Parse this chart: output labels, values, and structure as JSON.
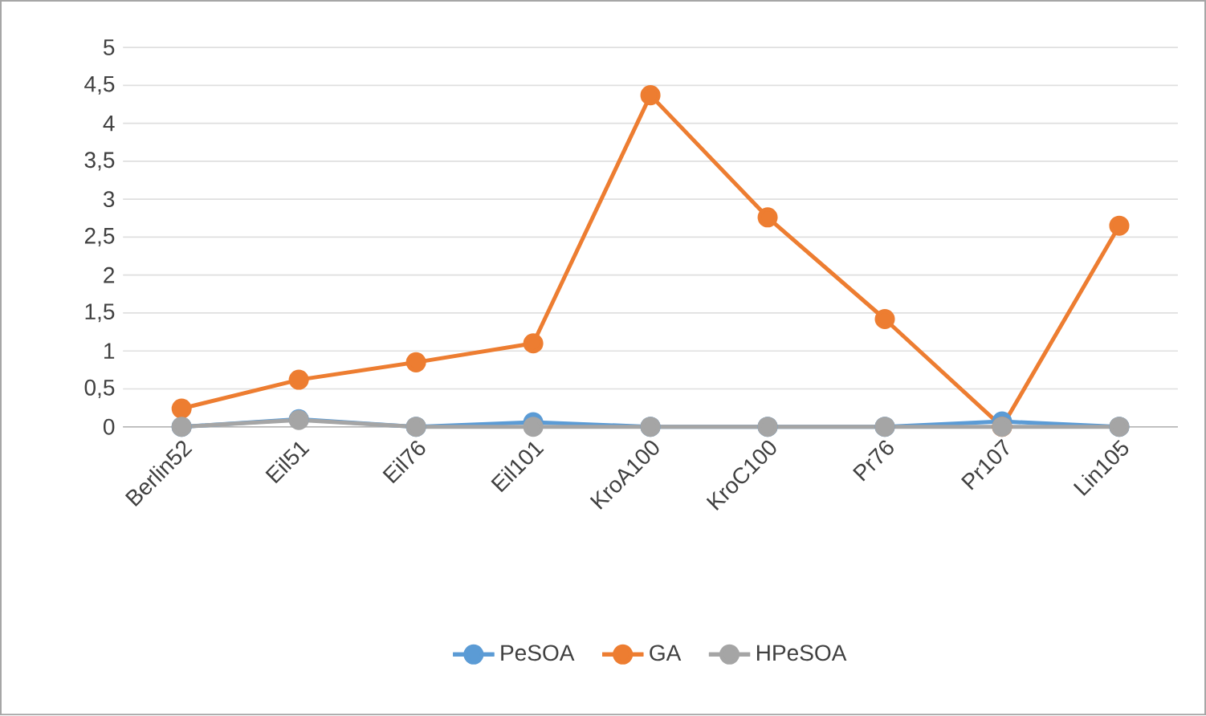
{
  "chart_data": {
    "type": "line",
    "categories": [
      "Berlin52",
      "Eil51",
      "Eil76",
      "Eil101",
      "KroA100",
      "KroC100",
      "Pr76",
      "Pr107",
      "Lin105"
    ],
    "series": [
      {
        "name": "PeSOA",
        "color": "#5b9bd5",
        "values": [
          0,
          0.1,
          0,
          0.06,
          0,
          0,
          0,
          0.07,
          0
        ]
      },
      {
        "name": "GA",
        "color": "#ed7d31",
        "values": [
          0.24,
          0.62,
          0.85,
          1.1,
          4.37,
          2.76,
          1.42,
          0,
          2.65
        ]
      },
      {
        "name": "HPeSOA",
        "color": "#a5a5a5",
        "values": [
          0,
          0.09,
          0,
          0,
          0,
          0,
          0,
          0,
          0
        ]
      }
    ],
    "ylim": [
      0,
      5
    ],
    "yticks": [
      0,
      {
        "value": 0.5,
        "label": "0,5"
      },
      1,
      {
        "value": 1.5,
        "label": "1,5"
      },
      2,
      {
        "value": 2.5,
        "label": "2,5"
      },
      3,
      {
        "value": 3.5,
        "label": "3,5"
      },
      4,
      {
        "value": 4.5,
        "label": "4,5"
      },
      5
    ],
    "grid": "y",
    "legend": "bottom",
    "marker": "circle",
    "line_style": "solid"
  }
}
